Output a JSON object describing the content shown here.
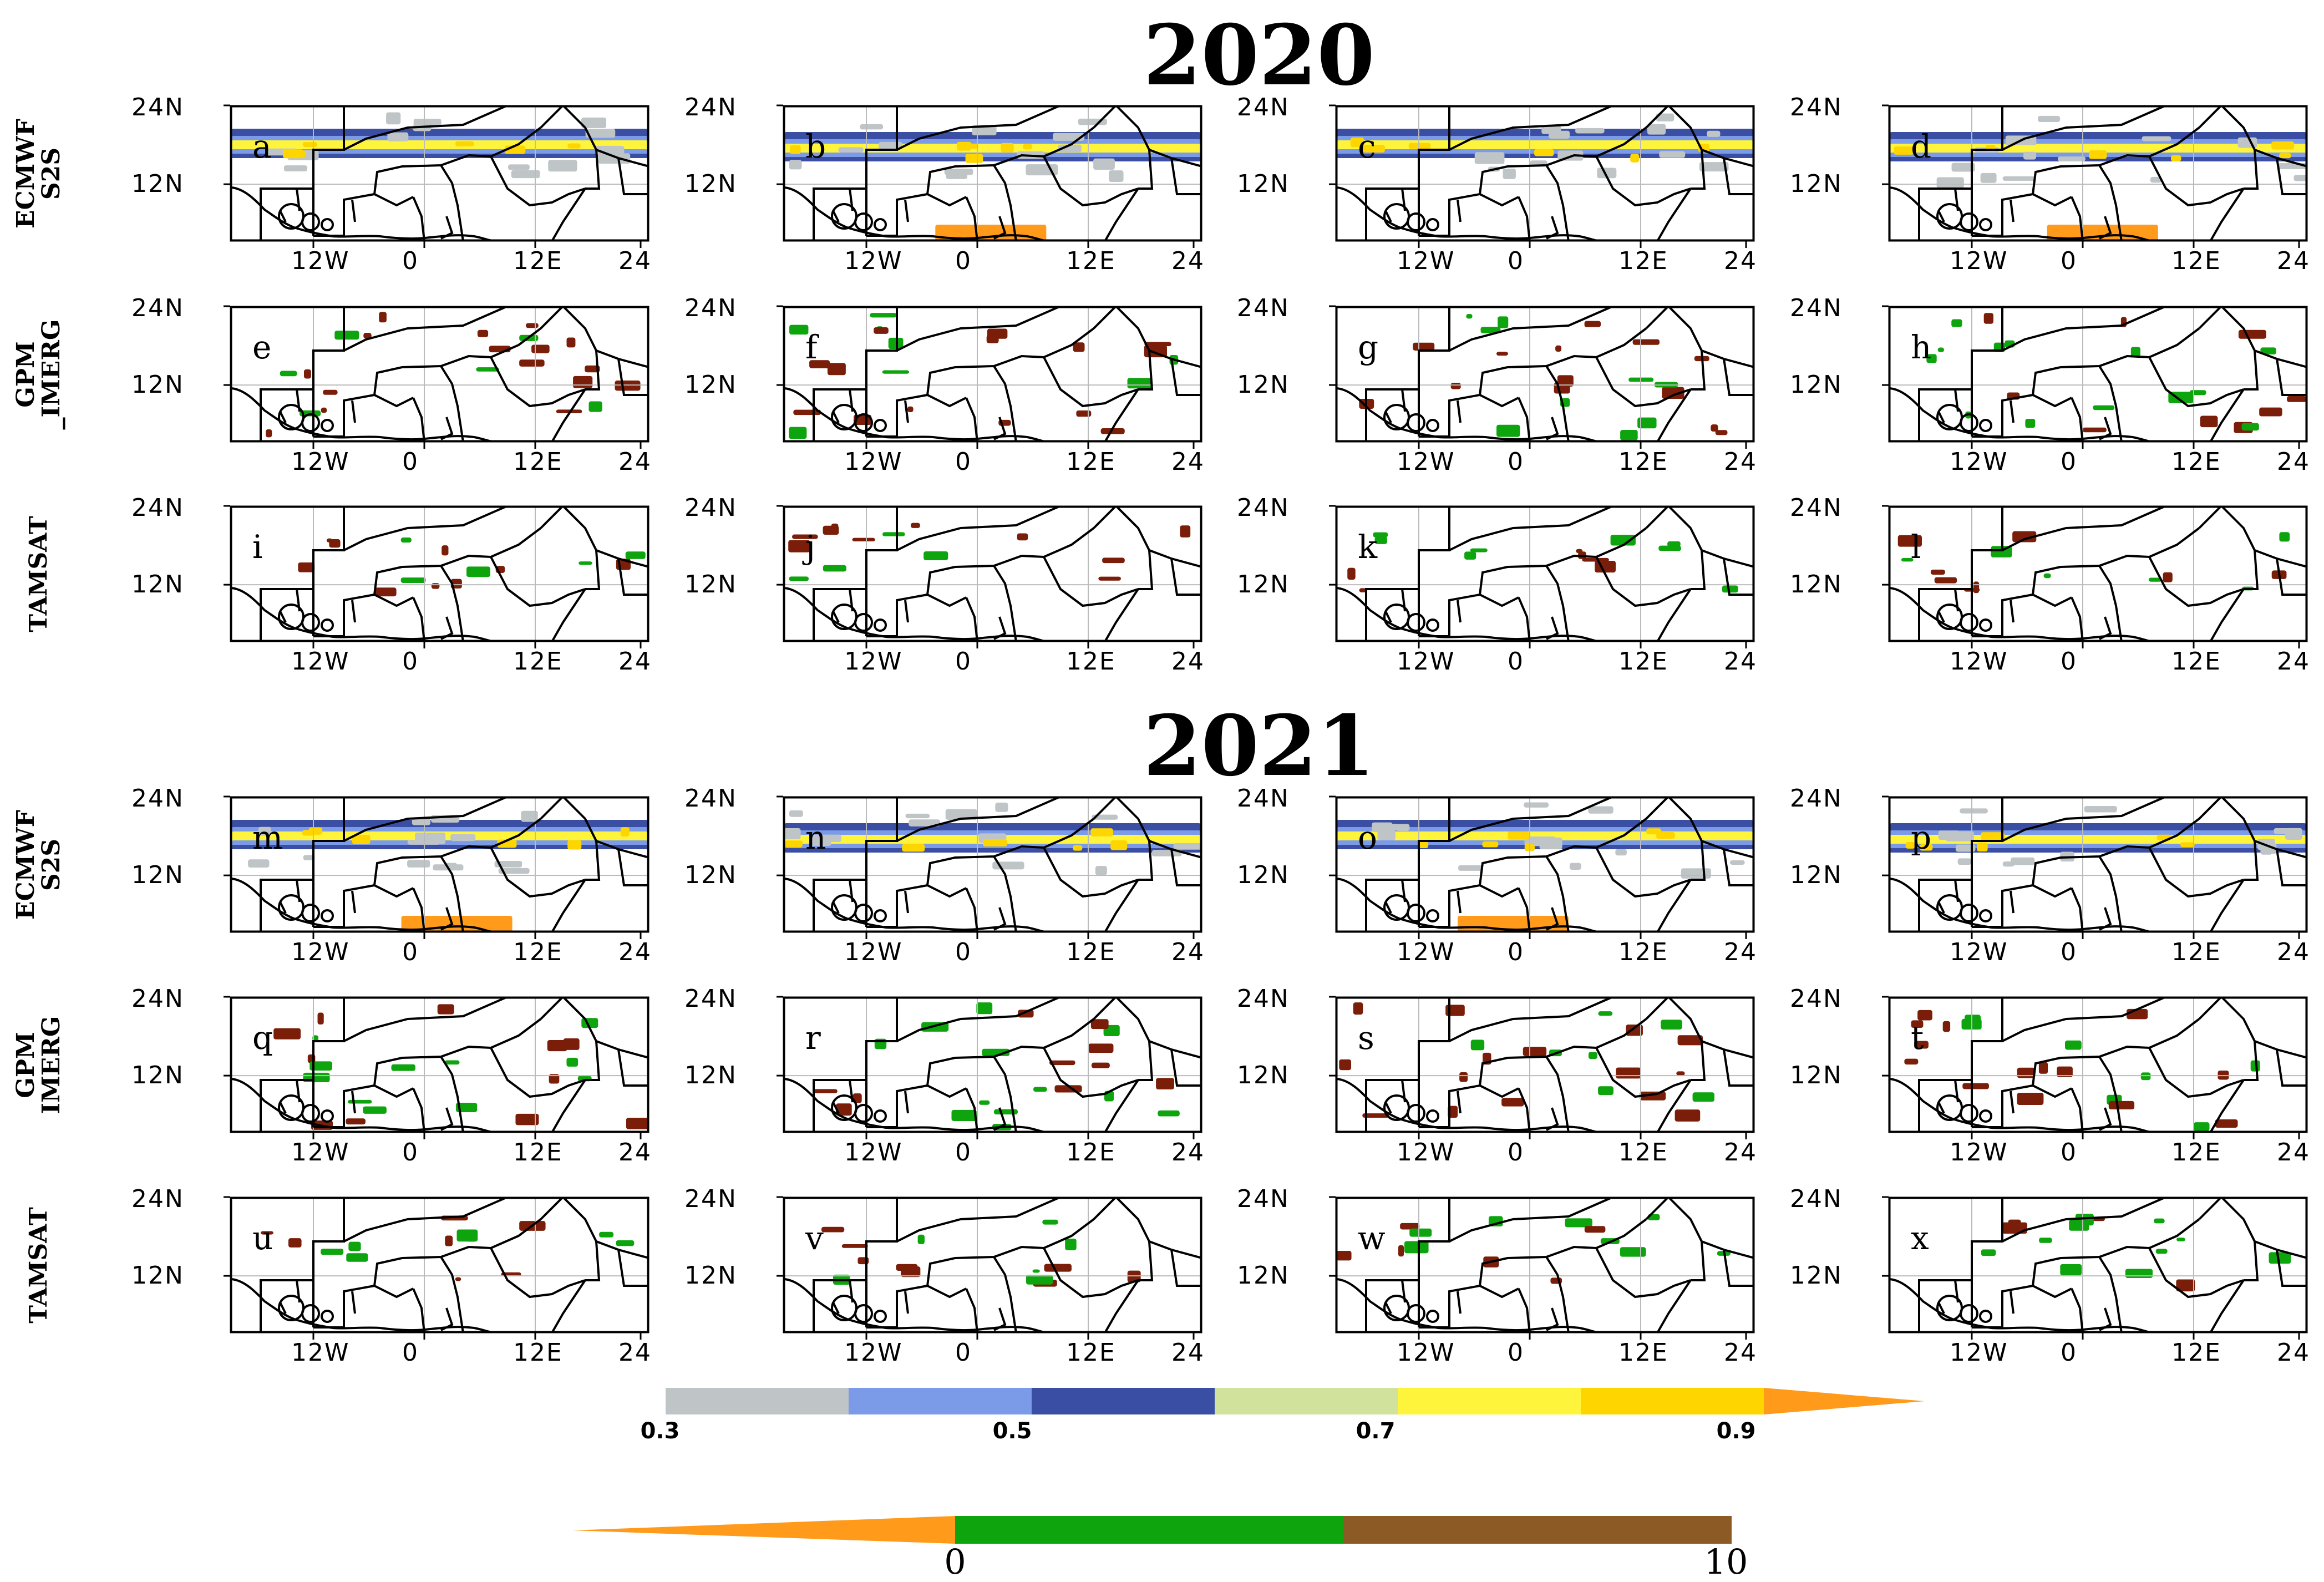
{
  "years": [
    "2020",
    "2021"
  ],
  "row_labels": [
    [
      "ECMWF",
      "S2S"
    ],
    [
      "GPM",
      "_IMERG"
    ],
    [
      "TAMSAT"
    ],
    [
      "ECMWF",
      "S2S"
    ],
    [
      "GPM",
      "IMERG"
    ],
    [
      "TAMSAT"
    ]
  ],
  "axis": {
    "y_ticks": [
      "24N",
      "12N"
    ],
    "x_ticks": [
      "12W",
      "0",
      "12E",
      "24"
    ]
  },
  "panel_letters": [
    "a",
    "b",
    "c",
    "d",
    "e",
    "f",
    "g",
    "h",
    "i",
    "j",
    "k",
    "l",
    "m",
    "n",
    "o",
    "p",
    "q",
    "r",
    "s",
    "t",
    "u",
    "v",
    "w",
    "x"
  ],
  "colors": {
    "grey": "#bfc4c7",
    "light_blue": "#7b9be8",
    "dark_blue": "#3a4fa3",
    "light_green": "#d1e29c",
    "yellow": "#fff43c",
    "gold": "#ffd500",
    "orange": "#ff9a1a",
    "green": "#0ea40e",
    "brown": "#8c5a24",
    "dark_brown": "#7a1e0a"
  },
  "colorbar_top": {
    "labels": [
      "0.3",
      "0.5",
      "0.7",
      "0.9"
    ],
    "bins": [
      "grey",
      "light_blue",
      "dark_blue",
      "light_green",
      "yellow",
      "gold",
      "orange"
    ]
  },
  "colorbar_bottom": {
    "labels": [
      "0",
      "10"
    ],
    "bins": [
      "orange",
      "green",
      "brown"
    ]
  }
}
